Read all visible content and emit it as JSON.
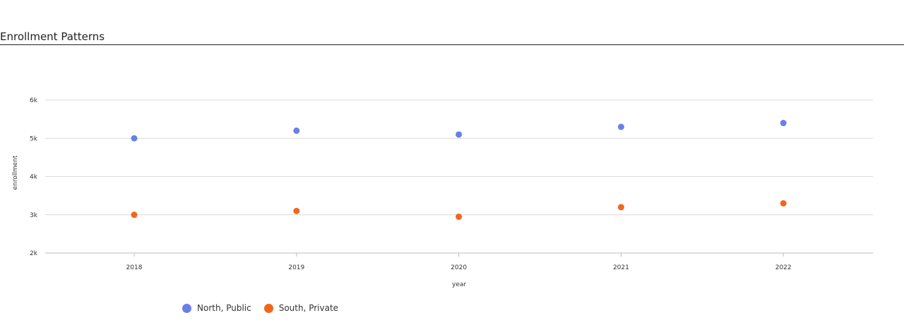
{
  "page": {
    "title": "Enrollment Patterns"
  },
  "chart_data": {
    "type": "scatter",
    "title": "",
    "xlabel": "year",
    "ylabel": "enrollment",
    "categories": [
      "2018",
      "2019",
      "2020",
      "2021",
      "2022"
    ],
    "ylim": [
      2000,
      6000
    ],
    "yticks": [
      2000,
      3000,
      4000,
      5000,
      6000
    ],
    "ytick_labels": [
      "2k",
      "3k",
      "4k",
      "5k",
      "6k"
    ],
    "grid": true,
    "legend_position": "bottom-left",
    "series": [
      {
        "name": "North, Public",
        "color": "#6b7fe8",
        "values": [
          5000,
          5200,
          5100,
          5300,
          5400
        ]
      },
      {
        "name": "South, Private",
        "color": "#f2661a",
        "values": [
          3000,
          3100,
          2950,
          3200,
          3300
        ]
      }
    ]
  }
}
